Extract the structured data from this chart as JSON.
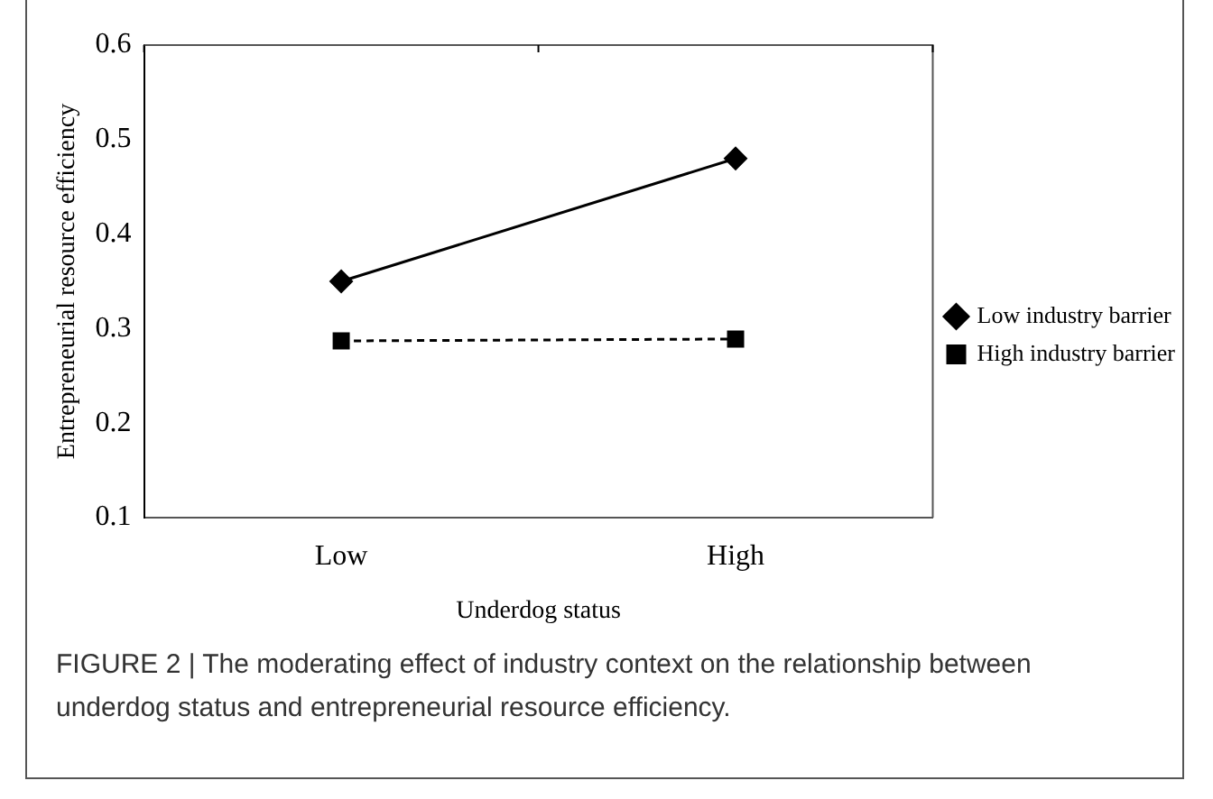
{
  "chart_data": {
    "type": "line",
    "xlabel": "Underdog status",
    "ylabel": "Entrepreneurial resource efficiency",
    "categories": [
      "Low",
      "High"
    ],
    "series": [
      {
        "name": "Low industry barrier",
        "color": "#000000",
        "values": [
          0.35,
          0.48
        ],
        "marker": "diamond",
        "line_style": "solid"
      },
      {
        "name": "High industry barrier",
        "color": "#000000",
        "values": [
          0.287,
          0.289
        ],
        "marker": "square",
        "line_style": "dashed"
      }
    ],
    "ylim": [
      0.1,
      0.6
    ],
    "yticks": [
      0.1,
      0.2,
      0.3,
      0.4,
      0.5,
      0.6
    ],
    "grid": false,
    "legend": "right",
    "annotations": [
      "FIGURE 2 | The moderating effect of industry context on the relationship between underdog status and entrepreneurial resource efficiency."
    ]
  }
}
